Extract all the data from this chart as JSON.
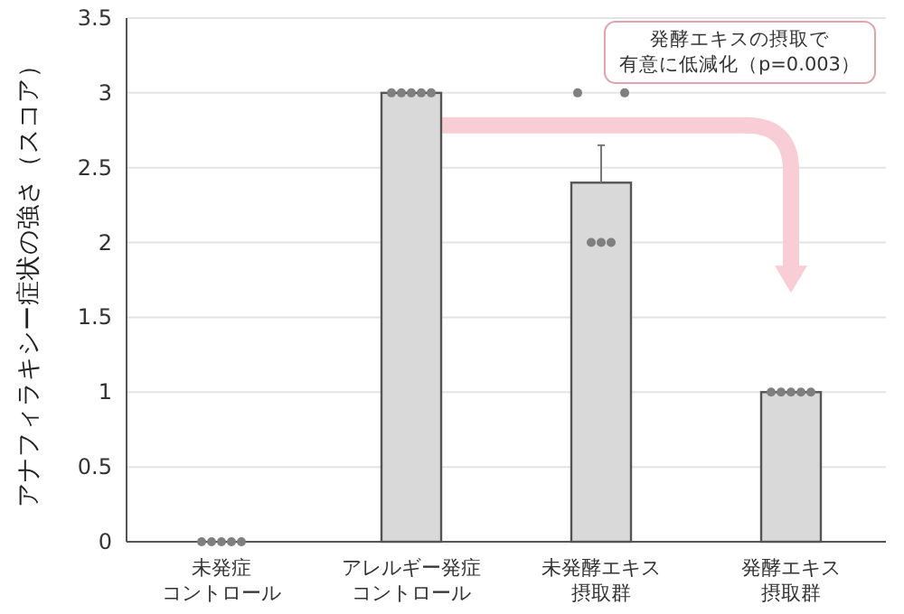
{
  "chart_data": {
    "type": "bar",
    "ylabel": "アナフィラキシー症状の強さ（スコア）",
    "categories": [
      "未発症コントロール",
      "アレルギー発症コントロール",
      "未発酵エキス摂取群",
      "発酵エキス摂取群"
    ],
    "series": [
      {
        "color": "#d9d9d9",
        "values": [
          0,
          3,
          2.4,
          1
        ],
        "errors": [
          null,
          null,
          [
            2.4,
            2.65
          ],
          null
        ]
      },
      {
        "type": "scatter",
        "color": "#7f7f7f",
        "x": [
          "未発症コントロール",
          "未発症コントロール",
          "未発症コントロール",
          "未発症コントロール",
          "未発症コントロール",
          "アレルギー発症コントロール",
          "アレルギー発症コントロール",
          "アレルギー発症コントロール",
          "アレルギー発症コントロール",
          "アレルギー発症コントロール",
          "未発酵エキス摂取群",
          "未発酵エキス摂取群",
          "未発酵エキス摂取群",
          "未発酵エキス摂取群",
          "未発酵エキス摂取群",
          "発酵エキス摂取群",
          "発酵エキス摂取群",
          "発酵エキス摂取群",
          "発酵エキス摂取群",
          "発酵エキス摂取群"
        ],
        "values": [
          0,
          0,
          0,
          0,
          0,
          3,
          3,
          3,
          3,
          3,
          3,
          3,
          2,
          2,
          2,
          1,
          1,
          1,
          1,
          1
        ]
      }
    ],
    "ylim": [
      0,
      3.5
    ],
    "yticks": [
      0,
      0.5,
      1,
      1.5,
      2,
      2.5,
      3,
      3.5
    ],
    "grid": "y",
    "annotations": [
      "発酵エキスの摂取で",
      "有意に低減化（p=0.003）"
    ]
  }
}
